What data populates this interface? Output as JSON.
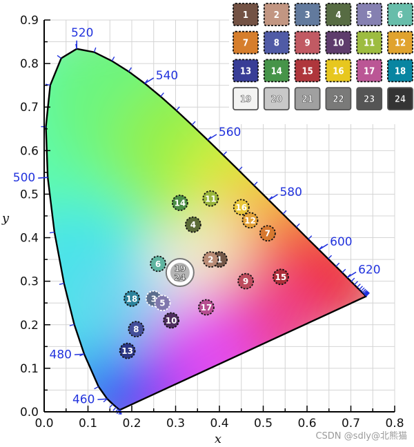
{
  "chart_data": {
    "type": "scatter",
    "title": "",
    "xlabel": "x",
    "ylabel": "y",
    "xlim": [
      0.0,
      0.8
    ],
    "ylim": [
      0.0,
      0.9
    ],
    "x_ticks": [
      "0.0",
      "0.1",
      "0.2",
      "0.3",
      "0.4",
      "0.5",
      "0.6",
      "0.7",
      "0.8"
    ],
    "y_ticks": [
      "0.0",
      "0.1",
      "0.2",
      "0.3",
      "0.4",
      "0.5",
      "0.6",
      "0.7",
      "0.8",
      "0.9"
    ],
    "grid": true,
    "spectral_locus": [
      [
        0.1741,
        0.005
      ],
      [
        0.1738,
        0.0049
      ],
      [
        0.1733,
        0.0048
      ],
      [
        0.1726,
        0.0048
      ],
      [
        0.1714,
        0.0051
      ],
      [
        0.1689,
        0.0069
      ],
      [
        0.1644,
        0.0109
      ],
      [
        0.1566,
        0.0177
      ],
      [
        0.144,
        0.0297
      ],
      [
        0.1241,
        0.0578
      ],
      [
        0.0913,
        0.1327
      ],
      [
        0.0687,
        0.2007
      ],
      [
        0.0454,
        0.295
      ],
      [
        0.0235,
        0.4127
      ],
      [
        0.0082,
        0.5384
      ],
      [
        0.0039,
        0.6548
      ],
      [
        0.0139,
        0.7502
      ],
      [
        0.0389,
        0.812
      ],
      [
        0.0743,
        0.8338
      ],
      [
        0.1142,
        0.8262
      ],
      [
        0.1547,
        0.8059
      ],
      [
        0.1929,
        0.7816
      ],
      [
        0.2296,
        0.7543
      ],
      [
        0.2658,
        0.7243
      ],
      [
        0.3016,
        0.6923
      ],
      [
        0.3373,
        0.6589
      ],
      [
        0.3731,
        0.6245
      ],
      [
        0.4087,
        0.5896
      ],
      [
        0.4441,
        0.5547
      ],
      [
        0.4788,
        0.5202
      ],
      [
        0.5125,
        0.4866
      ],
      [
        0.5448,
        0.4544
      ],
      [
        0.5752,
        0.4242
      ],
      [
        0.6029,
        0.3965
      ],
      [
        0.627,
        0.3725
      ],
      [
        0.6482,
        0.3514
      ],
      [
        0.6658,
        0.334
      ],
      [
        0.6801,
        0.3197
      ],
      [
        0.6915,
        0.3083
      ],
      [
        0.7006,
        0.2993
      ],
      [
        0.7079,
        0.292
      ],
      [
        0.714,
        0.2859
      ],
      [
        0.719,
        0.2809
      ],
      [
        0.723,
        0.277
      ],
      [
        0.726,
        0.274
      ],
      [
        0.7283,
        0.2717
      ],
      [
        0.73,
        0.27
      ],
      [
        0.7311,
        0.2689
      ],
      [
        0.732,
        0.268
      ],
      [
        0.7327,
        0.2673
      ],
      [
        0.7334,
        0.2666
      ],
      [
        0.734,
        0.266
      ],
      [
        0.7344,
        0.2656
      ],
      [
        0.7346,
        0.2654
      ],
      [
        0.7347,
        0.2653
      ]
    ],
    "wavelength_labels": [
      {
        "nm": "460",
        "x": 0.144,
        "y": 0.0297,
        "dir": "left"
      },
      {
        "nm": "480",
        "x": 0.0913,
        "y": 0.1327,
        "dir": "left"
      },
      {
        "nm": "500",
        "x": 0.0082,
        "y": 0.5384,
        "dir": "left"
      },
      {
        "nm": "520",
        "x": 0.0743,
        "y": 0.8338,
        "dir": "up"
      },
      {
        "nm": "540",
        "x": 0.2296,
        "y": 0.7543,
        "dir": "right"
      },
      {
        "nm": "560",
        "x": 0.3731,
        "y": 0.6245,
        "dir": "right"
      },
      {
        "nm": "580",
        "x": 0.5125,
        "y": 0.4866,
        "dir": "right"
      },
      {
        "nm": "600",
        "x": 0.627,
        "y": 0.3725,
        "dir": "right"
      },
      {
        "nm": "620",
        "x": 0.6915,
        "y": 0.3083,
        "dir": "right"
      }
    ],
    "points": [
      {
        "label": "1",
        "x": 0.4,
        "y": 0.35,
        "color": "#745848",
        "ring": "dark"
      },
      {
        "label": "2",
        "x": 0.38,
        "y": 0.35,
        "color": "#b98b75",
        "ring": "dark"
      },
      {
        "label": "3",
        "x": 0.25,
        "y": 0.26,
        "color": "#5c6e8e",
        "ring": "light"
      },
      {
        "label": "4",
        "x": 0.34,
        "y": 0.43,
        "color": "#5b6b38",
        "ring": "dark"
      },
      {
        "label": "5",
        "x": 0.27,
        "y": 0.25,
        "color": "#8078ad",
        "ring": "light"
      },
      {
        "label": "6",
        "x": 0.26,
        "y": 0.34,
        "color": "#5fb4a0",
        "ring": "dark"
      },
      {
        "label": "7",
        "x": 0.51,
        "y": 0.41,
        "color": "#d6782f",
        "ring": "dark"
      },
      {
        "label": "8",
        "x": 0.21,
        "y": 0.19,
        "color": "#444f9a",
        "ring": "dark"
      },
      {
        "label": "9",
        "x": 0.46,
        "y": 0.3,
        "color": "#bd4c5e",
        "ring": "dark"
      },
      {
        "label": "10",
        "x": 0.29,
        "y": 0.21,
        "color": "#4f2e60",
        "ring": "dark"
      },
      {
        "label": "11",
        "x": 0.38,
        "y": 0.49,
        "color": "#99b63b",
        "ring": "dark"
      },
      {
        "label": "12",
        "x": 0.47,
        "y": 0.44,
        "color": "#e3a23a",
        "ring": "dark"
      },
      {
        "label": "13",
        "x": 0.19,
        "y": 0.14,
        "color": "#2d3785",
        "ring": "dark"
      },
      {
        "label": "14",
        "x": 0.31,
        "y": 0.48,
        "color": "#4c8f45",
        "ring": "dark"
      },
      {
        "label": "15",
        "x": 0.54,
        "y": 0.31,
        "color": "#ad2e3a",
        "ring": "dark"
      },
      {
        "label": "16",
        "x": 0.45,
        "y": 0.47,
        "color": "#e9c73b",
        "ring": "dark"
      },
      {
        "label": "17",
        "x": 0.37,
        "y": 0.24,
        "color": "#b64e90",
        "ring": "dark"
      },
      {
        "label": "18",
        "x": 0.2,
        "y": 0.26,
        "color": "#2c839c",
        "ring": "dark"
      },
      {
        "label": "19",
        "x": 0.31,
        "y": 0.33,
        "color": "#b0b0b0",
        "ring": "light"
      },
      {
        "label": "24",
        "x": 0.31,
        "y": 0.31,
        "color": "#3a3a3a",
        "ring": "light"
      }
    ],
    "patches": [
      {
        "label": "1",
        "color": "#735244"
      },
      {
        "label": "2",
        "color": "#c29682"
      },
      {
        "label": "3",
        "color": "#627a9d"
      },
      {
        "label": "4",
        "color": "#576c43"
      },
      {
        "label": "5",
        "color": "#8580b1"
      },
      {
        "label": "6",
        "color": "#67bdaa"
      },
      {
        "label": "7",
        "color": "#d67e2c"
      },
      {
        "label": "8",
        "color": "#505ba6"
      },
      {
        "label": "9",
        "color": "#c15a63"
      },
      {
        "label": "10",
        "color": "#5e3c6c"
      },
      {
        "label": "11",
        "color": "#9dbc40"
      },
      {
        "label": "12",
        "color": "#e0a32e"
      },
      {
        "label": "13",
        "color": "#383d96"
      },
      {
        "label": "14",
        "color": "#469449"
      },
      {
        "label": "15",
        "color": "#af363c"
      },
      {
        "label": "16",
        "color": "#e7c71f"
      },
      {
        "label": "17",
        "color": "#bb5695"
      },
      {
        "label": "18",
        "color": "#0885a1"
      },
      {
        "label": "19",
        "color": "#f3f3f2"
      },
      {
        "label": "20",
        "color": "#c8c8c8"
      },
      {
        "label": "21",
        "color": "#a0a0a0"
      },
      {
        "label": "22",
        "color": "#7a7a79"
      },
      {
        "label": "23",
        "color": "#555555"
      },
      {
        "label": "24",
        "color": "#343434"
      }
    ]
  },
  "colors": {
    "wavelength": "#2233dd",
    "locus": "#000000",
    "grid": "#d4d4d4",
    "axis": "#000000"
  },
  "watermark": "CSDN @sdly@北熊猫"
}
